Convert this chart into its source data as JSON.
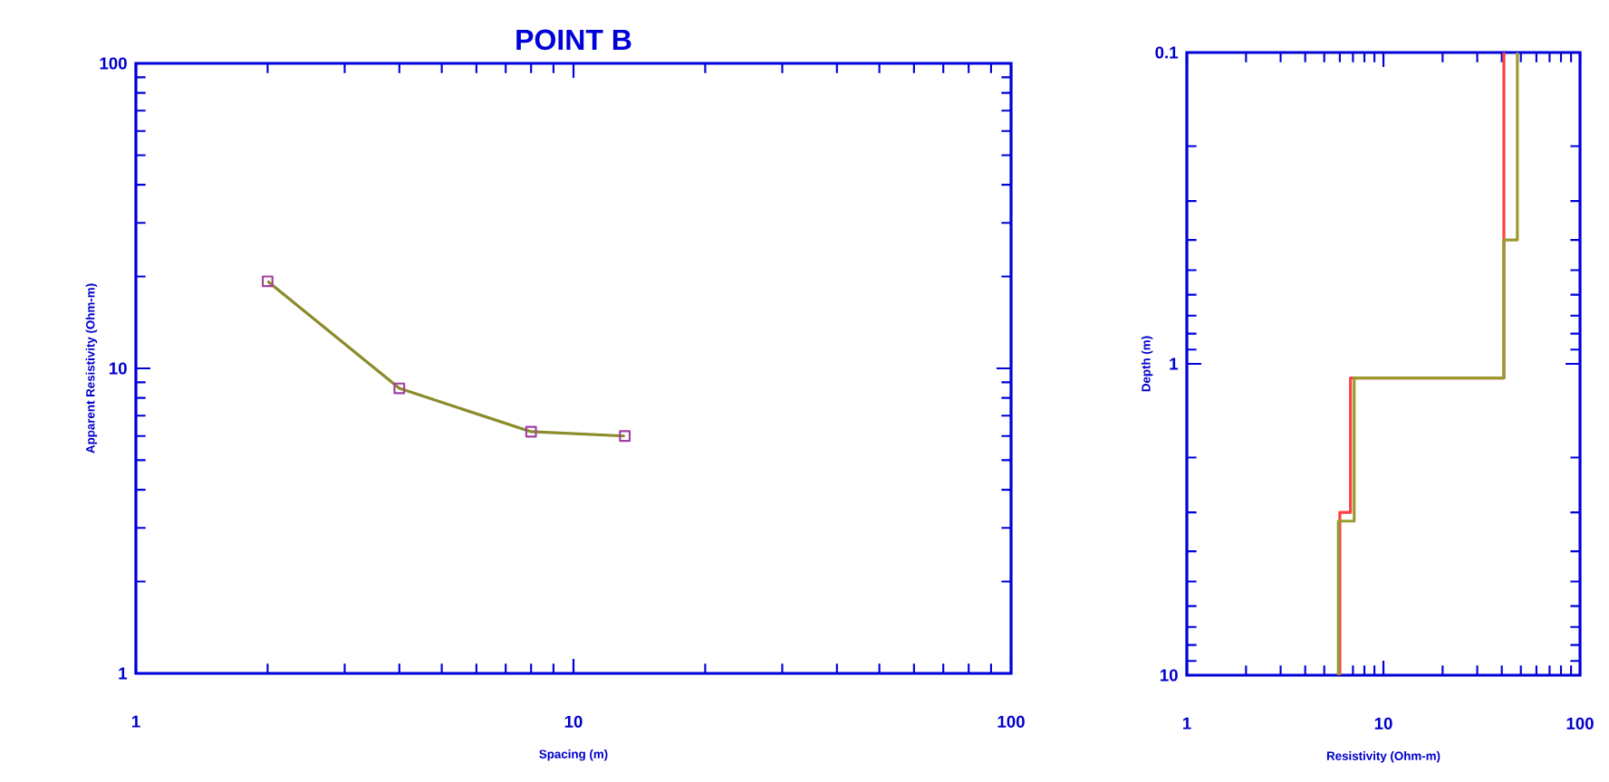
{
  "chart_data": [
    {
      "type": "line",
      "title": "POINT B",
      "xlabel": "Spacing (m)",
      "ylabel": "Apparent Resistivity (Ohm-m)",
      "log": "xy",
      "xlim": [
        1,
        100
      ],
      "ylim": [
        1,
        100
      ],
      "xticks": [
        1,
        10,
        100
      ],
      "yticks": [
        1,
        10,
        100
      ],
      "series": [
        {
          "type": "line",
          "color": "#8b8b2a",
          "marker": "none",
          "line_style": "solid",
          "x": [
            2,
            4,
            8,
            13.1
          ],
          "values": [
            19.3,
            8.6,
            6.2,
            6.0
          ]
        },
        {
          "type": "scatter",
          "color": "#a040a0",
          "marker": "square",
          "x": [
            2,
            4,
            8,
            13.1
          ],
          "values": [
            19.3,
            8.6,
            6.2,
            6.0
          ]
        }
      ]
    },
    {
      "type": "line",
      "xlabel": "Resistivity (Ohm-m)",
      "ylabel": "Depth (m)",
      "log": "xy",
      "xlim": [
        1,
        100
      ],
      "ylim": [
        10,
        0.1
      ],
      "xticks": [
        1,
        10,
        100
      ],
      "yticks": [
        0.1,
        1,
        10
      ],
      "series": [
        {
          "type": "line",
          "color": "#ff4040",
          "marker": "none",
          "line_style": "solid",
          "x": [
            41,
            41,
            6.8,
            6.8,
            6.0,
            6.0
          ],
          "values": [
            0.1,
            1.11,
            1.11,
            3.0,
            3.0,
            10
          ]
        },
        {
          "type": "line",
          "color": "#9a9a30",
          "marker": "none",
          "line_style": "solid",
          "x": [
            48,
            48,
            41,
            41,
            7.1,
            7.1,
            5.9,
            5.9
          ],
          "values": [
            0.1,
            0.4,
            0.4,
            1.11,
            1.11,
            3.2,
            3.2,
            10
          ]
        }
      ]
    }
  ]
}
